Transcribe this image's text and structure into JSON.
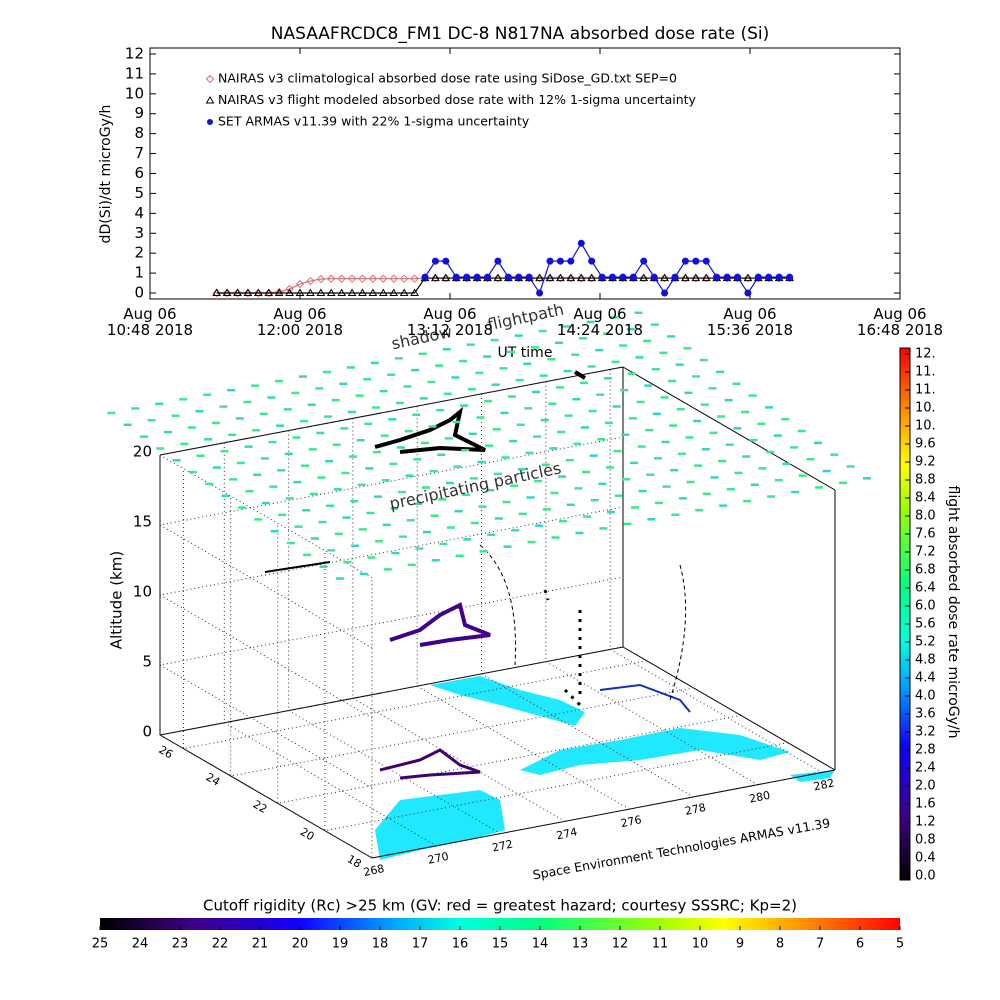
{
  "chart_data": [
    {
      "type": "line",
      "title": "NASAAFRCDC8_FM1 DC-8    N817NA absorbed dose rate (Si)",
      "ylabel": "dD(Si)/dt microGy/h",
      "xlabel": "UT time",
      "xlim": [
        "2018-08-06T10:48",
        "2018-08-06T16:48"
      ],
      "xticks": [
        {
          "value": "2018-08-06T10:48",
          "label": "Aug 06\n10:48 2018"
        },
        {
          "value": "2018-08-06T12:00",
          "label": "Aug 06\n12:00 2018"
        },
        {
          "value": "2018-08-06T13:12",
          "label": "Aug 06\n13:12 2018"
        },
        {
          "value": "2018-08-06T14:24",
          "label": "Aug 06\n14:24 2018"
        },
        {
          "value": "2018-08-06T15:36",
          "label": "Aug 06\n15:36 2018"
        },
        {
          "value": "2018-08-06T16:48",
          "label": "Aug 06\n16:48 2018"
        }
      ],
      "ylim": [
        -0.3,
        12.3
      ],
      "yticks": [
        0,
        1,
        2,
        3,
        4,
        5,
        6,
        7,
        8,
        9,
        10,
        11,
        12
      ],
      "x": [
        "2018-08-06T11:20",
        "2018-08-06T11:25",
        "2018-08-06T11:30",
        "2018-08-06T11:35",
        "2018-08-06T11:40",
        "2018-08-06T11:45",
        "2018-08-06T11:50",
        "2018-08-06T11:55",
        "2018-08-06T12:00",
        "2018-08-06T12:05",
        "2018-08-06T12:10",
        "2018-08-06T12:15",
        "2018-08-06T12:20",
        "2018-08-06T12:25",
        "2018-08-06T12:30",
        "2018-08-06T12:35",
        "2018-08-06T12:40",
        "2018-08-06T12:45",
        "2018-08-06T12:50",
        "2018-08-06T12:55",
        "2018-08-06T13:00",
        "2018-08-06T13:05",
        "2018-08-06T13:10",
        "2018-08-06T13:15",
        "2018-08-06T13:20",
        "2018-08-06T13:25",
        "2018-08-06T13:30",
        "2018-08-06T13:35",
        "2018-08-06T13:40",
        "2018-08-06T13:45",
        "2018-08-06T13:50",
        "2018-08-06T13:55",
        "2018-08-06T14:00",
        "2018-08-06T14:05",
        "2018-08-06T14:10",
        "2018-08-06T14:15",
        "2018-08-06T14:20",
        "2018-08-06T14:25",
        "2018-08-06T14:30",
        "2018-08-06T14:35",
        "2018-08-06T14:40",
        "2018-08-06T14:45",
        "2018-08-06T14:50",
        "2018-08-06T14:55",
        "2018-08-06T15:00",
        "2018-08-06T15:05",
        "2018-08-06T15:10",
        "2018-08-06T15:15",
        "2018-08-06T15:20",
        "2018-08-06T15:25",
        "2018-08-06T15:30",
        "2018-08-06T15:35",
        "2018-08-06T15:40",
        "2018-08-06T15:45",
        "2018-08-06T15:50",
        "2018-08-06T15:55"
      ],
      "series": [
        {
          "name": "NAIRAS v3 climatological absorbed dose rate using SiDose_GD.txt SEP=0",
          "color": "#d9706e",
          "marker": "diamond",
          "values": [
            0,
            0,
            0,
            0,
            0,
            0,
            0.05,
            0.2,
            0.45,
            0.6,
            0.7,
            0.72,
            0.72,
            0.72,
            0.72,
            0.72,
            0.72,
            0.72,
            0.72,
            0.72,
            0.75,
            0.75,
            0.75,
            0.75,
            0.75,
            0.75,
            0.75,
            0.75,
            0.75,
            0.75,
            0.75,
            0.75,
            0.75,
            0.75,
            0.75,
            0.75,
            0.75,
            0.75,
            0.75,
            0.75,
            0.75,
            0.75,
            0.75,
            0.75,
            0.75,
            0.75,
            0.75,
            0.75,
            0.75,
            0.75,
            0.75,
            0.75,
            0.75,
            0.75,
            0.75,
            0.75
          ]
        },
        {
          "name": "NAIRAS v3 flight modeled absorbed dose rate with 12% 1-sigma uncertainty",
          "color": "#000000",
          "marker": "triangle",
          "values": [
            0,
            0,
            0,
            0,
            0,
            0,
            0,
            0,
            0,
            0,
            0,
            0,
            0,
            0,
            0,
            0,
            0,
            0,
            0,
            0,
            0.75,
            0.75,
            0.75,
            0.75,
            0.75,
            0.75,
            0.75,
            0.75,
            0.75,
            0.75,
            0.75,
            0.75,
            0.75,
            0.75,
            0.75,
            0.75,
            0.75,
            0.75,
            0.75,
            0.75,
            0.75,
            0.75,
            0.75,
            0.75,
            0.75,
            0.75,
            0.75,
            0.75,
            0.75,
            0.75,
            0.75,
            0.75,
            0.75,
            0.75,
            0.75,
            0.75
          ]
        },
        {
          "name": "SET ARMAS v11.39 with 22% 1-sigma uncertainty",
          "color": "#1010e0",
          "marker": "circle",
          "values": [
            null,
            null,
            null,
            null,
            null,
            null,
            null,
            null,
            null,
            null,
            null,
            null,
            null,
            null,
            null,
            null,
            null,
            null,
            null,
            null,
            0.8,
            1.6,
            1.6,
            0.8,
            0.8,
            0.8,
            0.8,
            1.6,
            0.8,
            0.8,
            0.8,
            0,
            1.6,
            1.6,
            1.6,
            2.5,
            1.6,
            0.8,
            0.8,
            0.8,
            0.8,
            1.6,
            0.8,
            0,
            0.8,
            1.6,
            1.6,
            1.6,
            0.8,
            0.8,
            0.8,
            0,
            0.8,
            0.8,
            0.8,
            0.8
          ]
        }
      ]
    },
    {
      "type": "scatter3d",
      "zlabel": "Altitude (km)",
      "xlim": [
        268,
        282.4
      ],
      "xticks": [
        268,
        270,
        272,
        274,
        276,
        278,
        280,
        282
      ],
      "ylim": [
        18,
        27
      ],
      "yticks": [
        18,
        20,
        22,
        24,
        26
      ],
      "zlim": [
        0,
        20
      ],
      "zticks": [
        0,
        5,
        10,
        15,
        20
      ],
      "annotations": [
        "shadow",
        "flightpath",
        "precipitating particles"
      ],
      "credit": "Space Environment Technologies ARMAS v11.39",
      "colorbar": {
        "label": "flight absorbed dose rate microGy/h",
        "range": [
          0,
          11.6
        ],
        "ticks": [
          {
            "value": 0,
            "label": "0.0"
          },
          0.4,
          0.8,
          1.2,
          1.6,
          {
            "value": 2,
            "label": "2.0"
          },
          2.4,
          2.8,
          3.2,
          3.6,
          {
            "value": 4,
            "label": "4.0"
          },
          4.4,
          4.8,
          5.2,
          5.6,
          {
            "value": 6,
            "label": "6.0"
          },
          6.4,
          6.8,
          7.2,
          7.6,
          {
            "value": 8,
            "label": "8.0"
          },
          8.4,
          8.8,
          9.2,
          9.6,
          {
            "value": 10,
            "label": "10."
          },
          {
            "value": 10.4,
            "label": "10."
          },
          {
            "value": 10.8,
            "label": "11."
          },
          {
            "value": 11.2,
            "label": "11."
          },
          {
            "value": 11.6,
            "label": "12."
          }
        ]
      },
      "colorbar2": {
        "label": "Cutoff rigidity (Rc) >25 km (GV: red = greatest hazard; courtesy SSSRC; Kp=2)",
        "range": [
          25,
          5
        ],
        "ticks": [
          25,
          24,
          23,
          22,
          21,
          20,
          19,
          18,
          17,
          16,
          15,
          14,
          13,
          12,
          11,
          10,
          9,
          8,
          7,
          6,
          5
        ]
      }
    }
  ]
}
